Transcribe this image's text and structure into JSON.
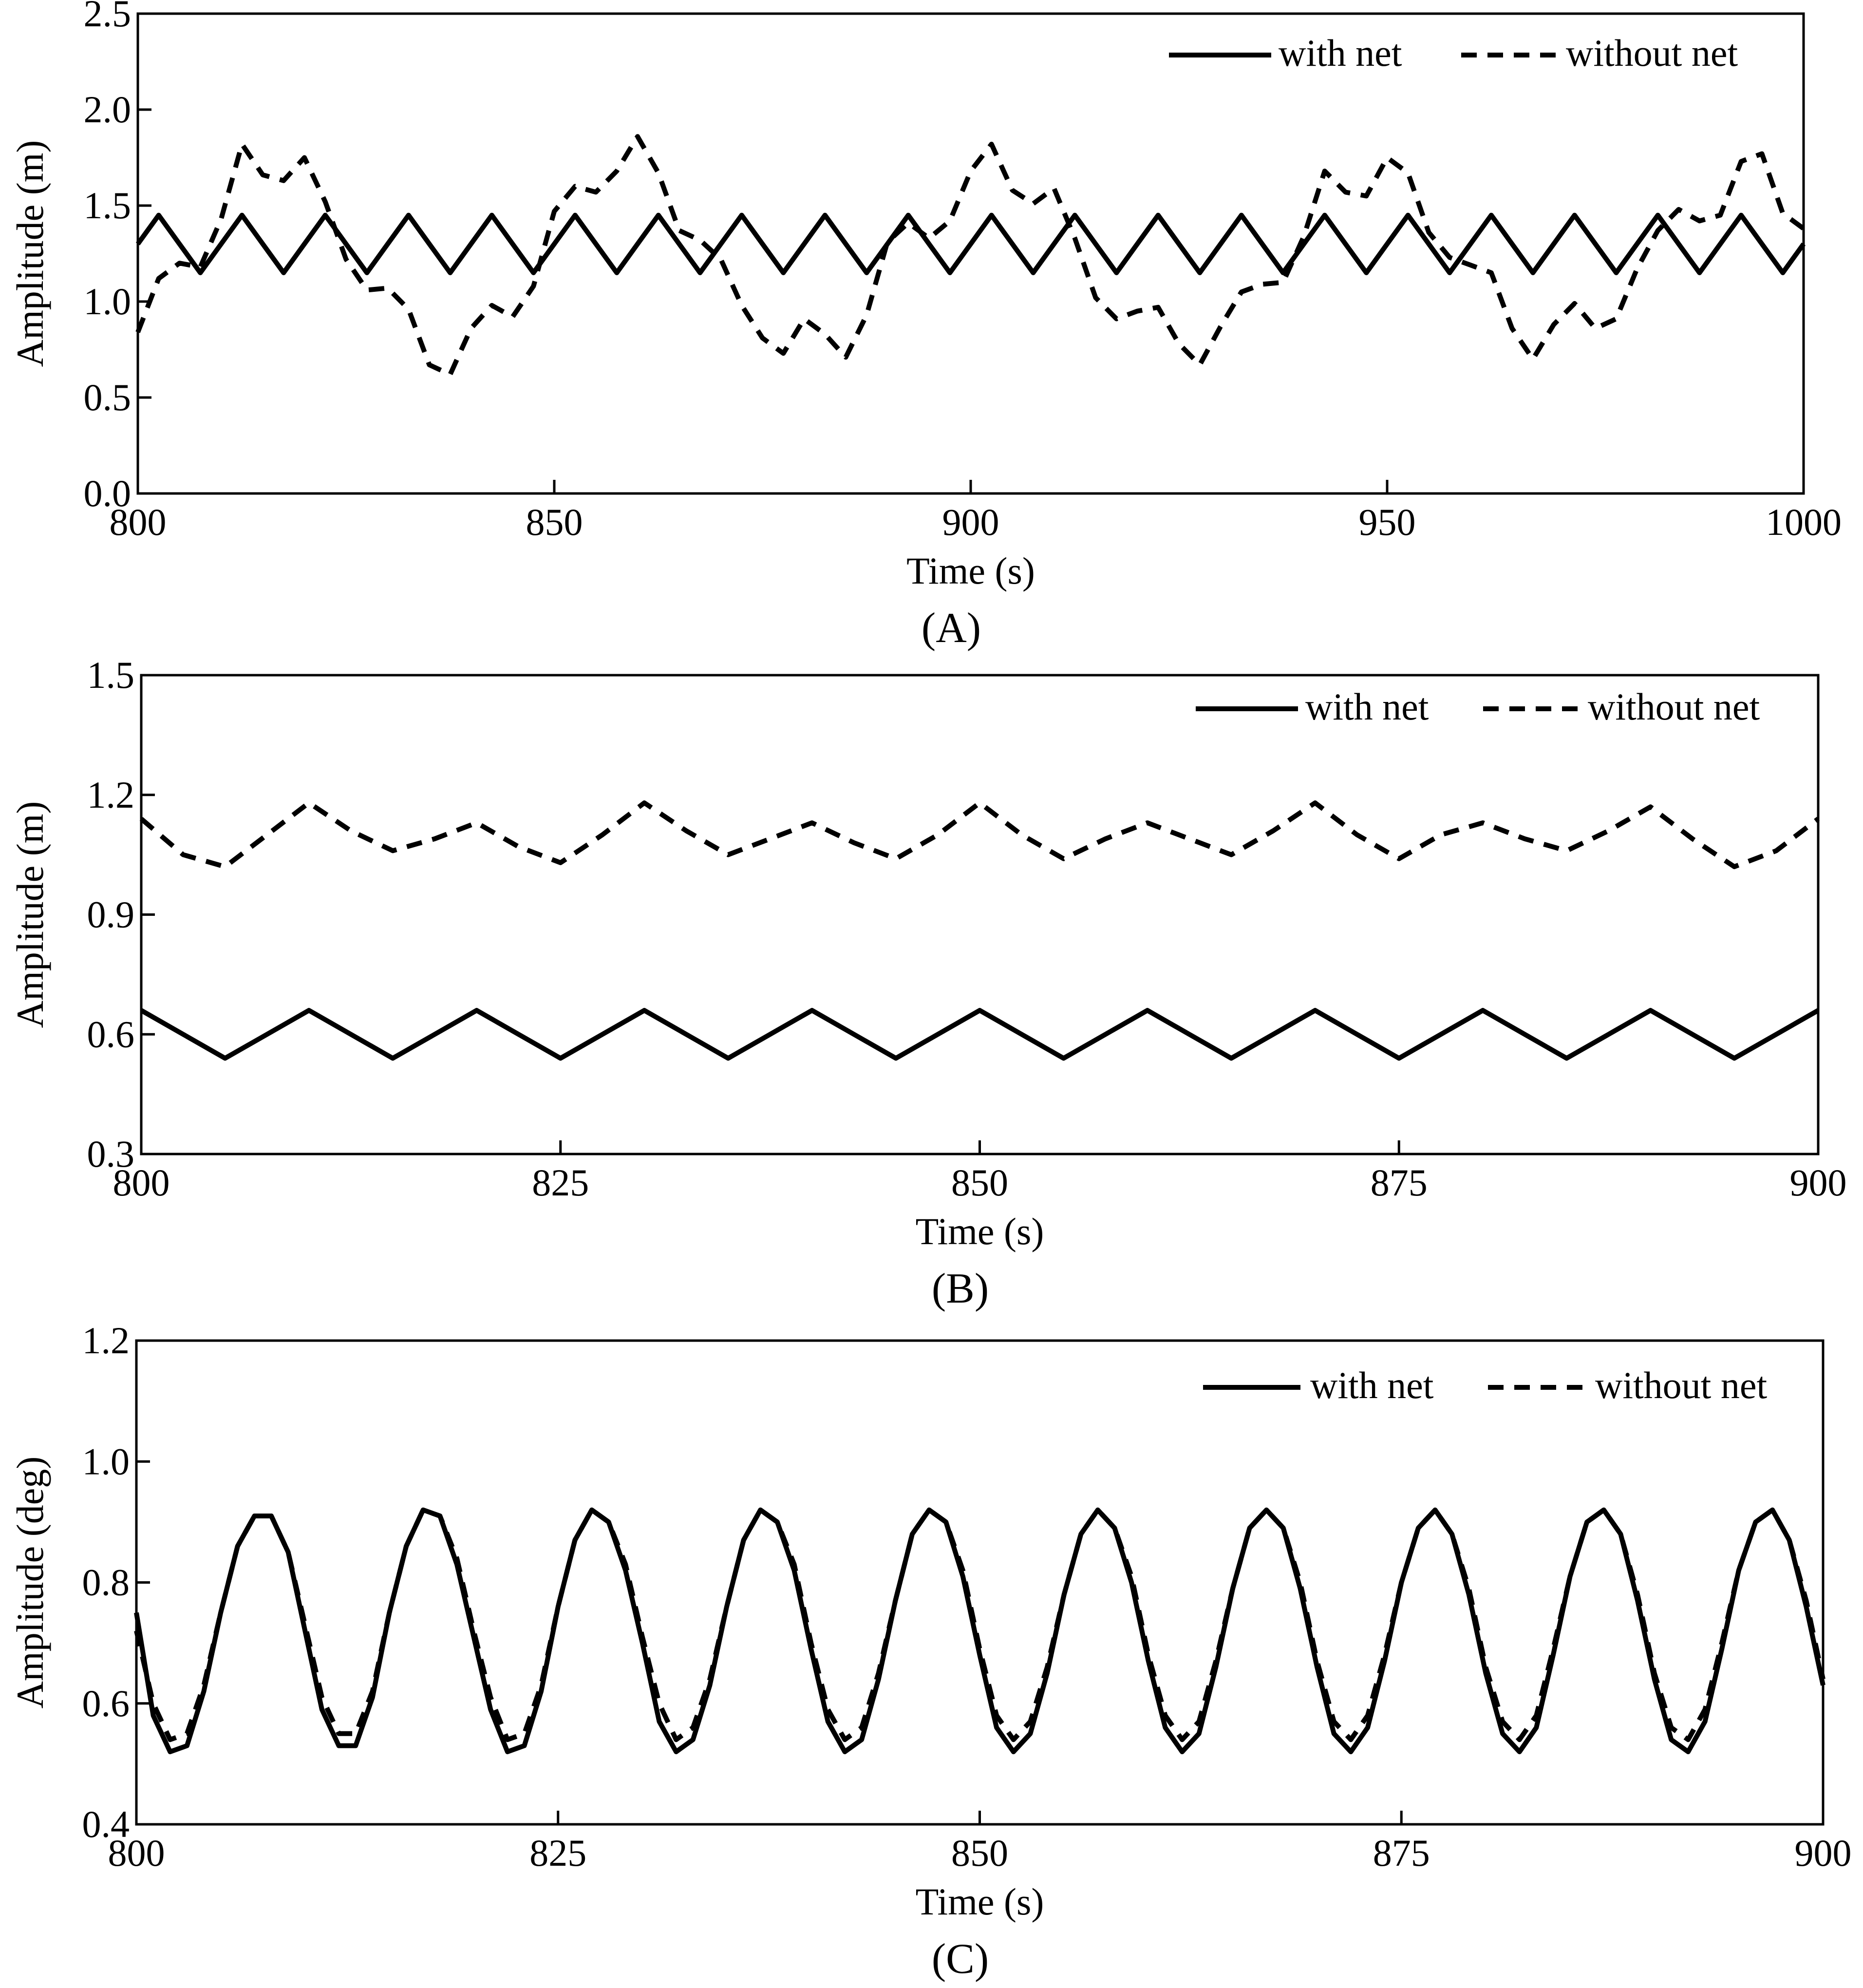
{
  "chart_data": [
    {
      "type": "line",
      "panel_label": "(A)",
      "xlabel": "Time (s)",
      "ylabel": "Amplitude (m)",
      "xlim": [
        800,
        1000
      ],
      "ylim": [
        0.0,
        2.5
      ],
      "xticks": [
        "800",
        "850",
        "900",
        "950",
        "1000"
      ],
      "yticks": [
        "0.0",
        "0.5",
        "1.0",
        "1.5",
        "2.0",
        "2.5"
      ],
      "grid": false,
      "legend_position": "top-right",
      "series": [
        {
          "name": "with net",
          "style": "solid",
          "x": [
            800,
            802.5,
            805,
            807.5,
            810,
            812.5,
            815,
            817.5,
            820,
            822.5,
            825,
            827.5,
            830,
            832.5,
            835,
            837.5,
            840,
            842.5,
            845,
            847.5,
            850,
            852.5,
            855,
            857.5,
            860,
            862.5,
            865,
            867.5,
            870,
            872.5,
            875,
            877.5,
            880,
            882.5,
            885,
            887.5,
            890,
            892.5,
            895,
            897.5,
            900,
            902.5,
            905,
            907.5,
            910,
            912.5,
            915,
            917.5,
            920,
            922.5,
            925,
            927.5,
            930,
            932.5,
            935,
            937.5,
            940,
            942.5,
            945,
            947.5,
            950,
            952.5,
            955,
            957.5,
            960,
            962.5,
            965,
            967.5,
            970,
            972.5,
            975,
            977.5,
            980,
            982.5,
            985,
            987.5,
            990,
            992.5,
            995,
            997.5,
            1000
          ],
          "y": [
            1.3,
            1.45,
            1.3,
            1.15,
            1.3,
            1.45,
            1.3,
            1.15,
            1.3,
            1.45,
            1.3,
            1.15,
            1.3,
            1.45,
            1.3,
            1.15,
            1.3,
            1.45,
            1.3,
            1.15,
            1.3,
            1.45,
            1.3,
            1.15,
            1.3,
            1.45,
            1.3,
            1.15,
            1.3,
            1.45,
            1.3,
            1.15,
            1.3,
            1.45,
            1.3,
            1.15,
            1.3,
            1.45,
            1.3,
            1.15,
            1.3,
            1.45,
            1.3,
            1.15,
            1.3,
            1.45,
            1.3,
            1.15,
            1.3,
            1.45,
            1.3,
            1.15,
            1.3,
            1.45,
            1.3,
            1.15,
            1.3,
            1.45,
            1.3,
            1.15,
            1.3,
            1.45,
            1.3,
            1.15,
            1.3,
            1.45,
            1.3,
            1.15,
            1.3,
            1.45,
            1.3,
            1.15,
            1.3,
            1.45,
            1.3,
            1.15,
            1.3,
            1.45,
            1.3,
            1.15,
            1.3
          ]
        },
        {
          "name": "without net",
          "style": "dashed",
          "x": [
            800,
            802.5,
            805,
            807.5,
            810,
            812.5,
            815,
            817.5,
            820,
            822.5,
            825,
            827.5,
            830,
            832.5,
            835,
            837.5,
            840,
            842.5,
            845,
            847.5,
            850,
            852.5,
            855,
            857.5,
            860,
            862.5,
            865,
            867.5,
            870,
            872.5,
            875,
            877.5,
            880,
            882.5,
            885,
            887.5,
            890,
            892.5,
            895,
            897.5,
            900,
            902.5,
            905,
            907.5,
            910,
            912.5,
            915,
            917.5,
            920,
            922.5,
            925,
            927.5,
            930,
            932.5,
            935,
            937.5,
            940,
            942.5,
            945,
            947.5,
            950,
            952.5,
            955,
            957.5,
            960,
            962.5,
            965,
            967.5,
            970,
            972.5,
            975,
            977.5,
            980,
            982.5,
            985,
            987.5,
            990,
            992.5,
            995,
            997.5,
            1000
          ],
          "y": [
            0.84,
            1.12,
            1.2,
            1.18,
            1.43,
            1.82,
            1.66,
            1.63,
            1.75,
            1.52,
            1.22,
            1.06,
            1.07,
            0.96,
            0.67,
            0.62,
            0.86,
            0.98,
            0.92,
            1.08,
            1.47,
            1.6,
            1.57,
            1.68,
            1.86,
            1.67,
            1.37,
            1.32,
            1.22,
            0.98,
            0.81,
            0.73,
            0.91,
            0.83,
            0.71,
            0.93,
            1.31,
            1.41,
            1.33,
            1.42,
            1.68,
            1.82,
            1.58,
            1.51,
            1.59,
            1.33,
            1.02,
            0.91,
            0.95,
            0.97,
            0.78,
            0.67,
            0.87,
            1.05,
            1.09,
            1.1,
            1.34,
            1.68,
            1.57,
            1.55,
            1.75,
            1.67,
            1.36,
            1.23,
            1.19,
            1.15,
            0.86,
            0.7,
            0.88,
            0.99,
            0.86,
            0.91,
            1.17,
            1.37,
            1.48,
            1.42,
            1.45,
            1.73,
            1.77,
            1.46,
            1.38
          ]
        }
      ]
    },
    {
      "type": "line",
      "panel_label": "(B)",
      "xlabel": "Time (s)",
      "ylabel": "Amplitude (m)",
      "xlim": [
        800,
        900
      ],
      "ylim": [
        0.3,
        1.5
      ],
      "xticks": [
        "800",
        "825",
        "850",
        "875",
        "900"
      ],
      "yticks": [
        "0.3",
        "0.6",
        "0.9",
        "1.2",
        "1.5"
      ],
      "grid": false,
      "legend_position": "top-right",
      "series": [
        {
          "name": "with net",
          "style": "solid",
          "x": [
            800,
            802.5,
            805,
            807.5,
            810,
            812.5,
            815,
            817.5,
            820,
            822.5,
            825,
            827.5,
            830,
            832.5,
            835,
            837.5,
            840,
            842.5,
            845,
            847.5,
            850,
            852.5,
            855,
            857.5,
            860,
            862.5,
            865,
            867.5,
            870,
            872.5,
            875,
            877.5,
            880,
            882.5,
            885,
            887.5,
            890,
            892.5,
            895,
            897.5,
            900
          ],
          "y": [
            0.66,
            0.6,
            0.54,
            0.6,
            0.66,
            0.6,
            0.54,
            0.6,
            0.66,
            0.6,
            0.54,
            0.6,
            0.66,
            0.6,
            0.54,
            0.6,
            0.66,
            0.6,
            0.54,
            0.6,
            0.66,
            0.6,
            0.54,
            0.6,
            0.66,
            0.6,
            0.54,
            0.6,
            0.66,
            0.6,
            0.54,
            0.6,
            0.66,
            0.6,
            0.54,
            0.6,
            0.66,
            0.6,
            0.54,
            0.6,
            0.66
          ]
        },
        {
          "name": "without net",
          "style": "dashed",
          "x": [
            800,
            802.5,
            805,
            807.5,
            810,
            812.5,
            815,
            817.5,
            820,
            822.5,
            825,
            827.5,
            830,
            832.5,
            835,
            837.5,
            840,
            842.5,
            845,
            847.5,
            850,
            852.5,
            855,
            857.5,
            860,
            862.5,
            865,
            867.5,
            870,
            872.5,
            875,
            877.5,
            880,
            882.5,
            885,
            887.5,
            890,
            892.5,
            895,
            897.5,
            900
          ],
          "y": [
            1.14,
            1.05,
            1.02,
            1.1,
            1.18,
            1.11,
            1.06,
            1.09,
            1.13,
            1.07,
            1.03,
            1.1,
            1.18,
            1.11,
            1.05,
            1.09,
            1.13,
            1.08,
            1.04,
            1.1,
            1.18,
            1.1,
            1.04,
            1.09,
            1.13,
            1.09,
            1.05,
            1.11,
            1.18,
            1.1,
            1.04,
            1.1,
            1.13,
            1.09,
            1.06,
            1.11,
            1.17,
            1.09,
            1.02,
            1.06,
            1.14
          ]
        }
      ]
    },
    {
      "type": "line",
      "panel_label": "(C)",
      "xlabel": "Time (s)",
      "ylabel": "Amplitude (deg)",
      "xlim": [
        800,
        900
      ],
      "ylim": [
        0.4,
        1.2
      ],
      "xticks": [
        "800",
        "825",
        "850",
        "875",
        "900"
      ],
      "yticks": [
        "0.4",
        "0.6",
        "0.8",
        "1.0",
        "1.2"
      ],
      "grid": false,
      "legend_position": "top-right",
      "series": [
        {
          "name": "with net",
          "style": "solid",
          "x": [
            800,
            801,
            802,
            803,
            804,
            805,
            806,
            807,
            808,
            809,
            810,
            811,
            812,
            813,
            814,
            815,
            816,
            817,
            818,
            819,
            820,
            821,
            822,
            823,
            824,
            825,
            826,
            827,
            828,
            829,
            830,
            831,
            832,
            833,
            834,
            835,
            836,
            837,
            838,
            839,
            840,
            841,
            842,
            843,
            844,
            845,
            846,
            847,
            848,
            849,
            850,
            851,
            852,
            853,
            854,
            855,
            856,
            857,
            858,
            859,
            860,
            861,
            862,
            863,
            864,
            865,
            866,
            867,
            868,
            869,
            870,
            871,
            872,
            873,
            874,
            875,
            876,
            877,
            878,
            879,
            880,
            881,
            882,
            883,
            884,
            885,
            886,
            887,
            888,
            889,
            890,
            891,
            892,
            893,
            894,
            895,
            896,
            897,
            898,
            899,
            900
          ],
          "y": [
            0.75,
            0.58,
            0.52,
            0.53,
            0.62,
            0.75,
            0.86,
            0.91,
            0.91,
            0.85,
            0.72,
            0.59,
            0.53,
            0.53,
            0.61,
            0.75,
            0.86,
            0.92,
            0.91,
            0.83,
            0.71,
            0.59,
            0.52,
            0.53,
            0.62,
            0.76,
            0.87,
            0.92,
            0.9,
            0.82,
            0.7,
            0.57,
            0.52,
            0.54,
            0.63,
            0.76,
            0.87,
            0.92,
            0.9,
            0.82,
            0.69,
            0.57,
            0.52,
            0.54,
            0.64,
            0.77,
            0.88,
            0.92,
            0.9,
            0.81,
            0.68,
            0.56,
            0.52,
            0.55,
            0.65,
            0.78,
            0.88,
            0.92,
            0.89,
            0.8,
            0.67,
            0.56,
            0.52,
            0.55,
            0.66,
            0.79,
            0.89,
            0.92,
            0.89,
            0.79,
            0.66,
            0.55,
            0.52,
            0.56,
            0.67,
            0.8,
            0.89,
            0.92,
            0.88,
            0.78,
            0.65,
            0.55,
            0.52,
            0.56,
            0.68,
            0.81,
            0.9,
            0.92,
            0.88,
            0.77,
            0.64,
            0.54,
            0.52,
            0.57,
            0.69,
            0.82,
            0.9,
            0.92,
            0.87,
            0.76,
            0.63
          ]
        },
        {
          "name": "without net",
          "style": "dashed",
          "x": [
            800,
            801,
            802,
            803,
            804,
            805,
            806,
            807,
            808,
            809,
            810,
            811,
            812,
            813,
            814,
            815,
            816,
            817,
            818,
            819,
            820,
            821,
            822,
            823,
            824,
            825,
            826,
            827,
            828,
            829,
            830,
            831,
            832,
            833,
            834,
            835,
            836,
            837,
            838,
            839,
            840,
            841,
            842,
            843,
            844,
            845,
            846,
            847,
            848,
            849,
            850,
            851,
            852,
            853,
            854,
            855,
            856,
            857,
            858,
            859,
            860,
            861,
            862,
            863,
            864,
            865,
            866,
            867,
            868,
            869,
            870,
            871,
            872,
            873,
            874,
            875,
            876,
            877,
            878,
            879,
            880,
            881,
            882,
            883,
            884,
            885,
            886,
            887,
            888,
            889,
            890,
            891,
            892,
            893,
            894,
            895,
            896,
            897,
            898,
            899,
            900
          ],
          "y": [
            0.72,
            0.6,
            0.54,
            0.55,
            0.63,
            0.75,
            0.86,
            0.91,
            0.91,
            0.85,
            0.73,
            0.61,
            0.55,
            0.55,
            0.62,
            0.75,
            0.86,
            0.92,
            0.91,
            0.84,
            0.72,
            0.61,
            0.54,
            0.55,
            0.63,
            0.76,
            0.87,
            0.92,
            0.9,
            0.83,
            0.71,
            0.6,
            0.54,
            0.56,
            0.64,
            0.76,
            0.87,
            0.92,
            0.9,
            0.83,
            0.7,
            0.59,
            0.54,
            0.56,
            0.65,
            0.77,
            0.88,
            0.92,
            0.9,
            0.82,
            0.69,
            0.58,
            0.54,
            0.57,
            0.66,
            0.78,
            0.88,
            0.92,
            0.89,
            0.81,
            0.68,
            0.58,
            0.54,
            0.57,
            0.67,
            0.79,
            0.89,
            0.92,
            0.89,
            0.8,
            0.67,
            0.57,
            0.54,
            0.58,
            0.68,
            0.8,
            0.89,
            0.92,
            0.88,
            0.79,
            0.66,
            0.57,
            0.54,
            0.58,
            0.69,
            0.81,
            0.9,
            0.92,
            0.88,
            0.78,
            0.65,
            0.56,
            0.54,
            0.59,
            0.7,
            0.82,
            0.9,
            0.92,
            0.87,
            0.77,
            0.64
          ]
        }
      ]
    }
  ]
}
